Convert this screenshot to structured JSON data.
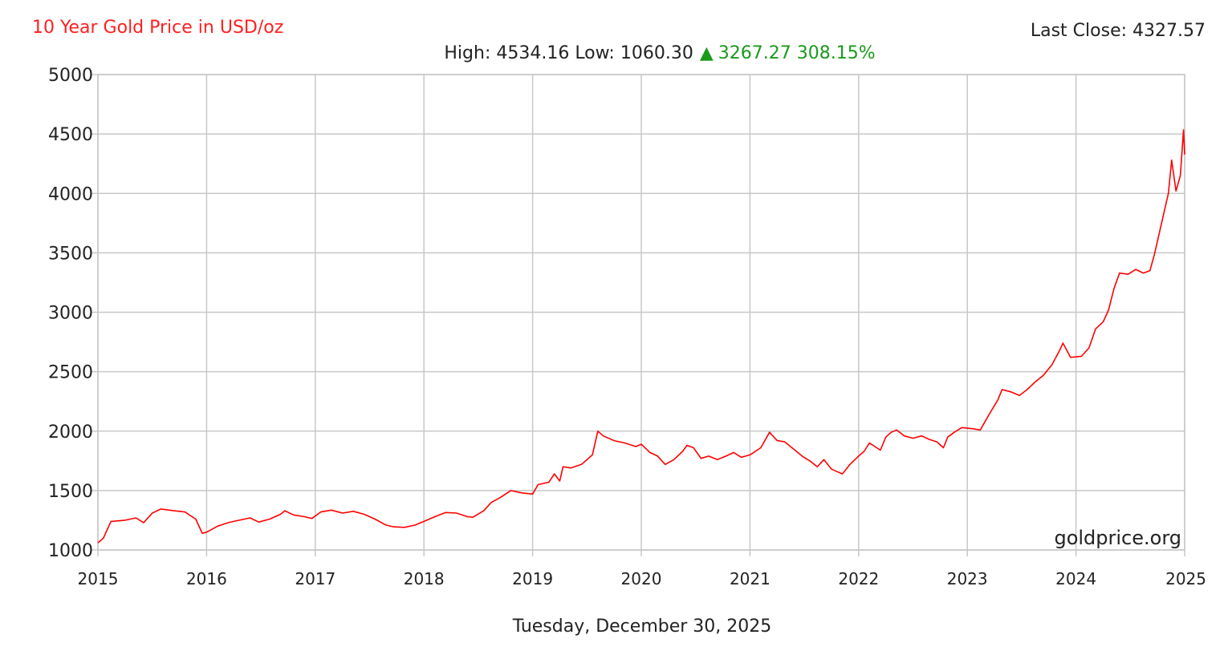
{
  "header": {
    "title": "10 Year Gold Price in USD/oz",
    "last_close_label": "Last Close: 4327.57",
    "high_low_label": "High: 4534.16 Low: 1060.30",
    "change_arrow": "▲",
    "change_value": "3267.27 308.15%"
  },
  "footer": {
    "date": "Tuesday, December 30, 2025",
    "watermark": "goldprice.org"
  },
  "colors": {
    "title": "#ff2020",
    "line": "#ff0000",
    "change": "#1a9a1a",
    "grid": "#c8c8c8",
    "axis": "#888888"
  },
  "chart_data": {
    "type": "line",
    "title": "10 Year Gold Price in USD/oz",
    "xlabel": "",
    "ylabel": "",
    "xlim": [
      2015,
      2025
    ],
    "ylim": [
      1000,
      5000
    ],
    "grid": true,
    "legend": "none",
    "x_ticks": [
      "2015",
      "2016",
      "2017",
      "2018",
      "2019",
      "2020",
      "2021",
      "2022",
      "2023",
      "2024",
      "2025"
    ],
    "y_ticks": [
      "5000",
      "4500",
      "4000",
      "3500",
      "3000",
      "2500",
      "2000",
      "1500",
      "1000"
    ],
    "series": [
      {
        "points": [
          [
            2015.0,
            1060
          ],
          [
            2015.05,
            1100
          ],
          [
            2015.12,
            1240
          ],
          [
            2015.25,
            1250
          ],
          [
            2015.35,
            1270
          ],
          [
            2015.42,
            1230
          ],
          [
            2015.5,
            1310
          ],
          [
            2015.58,
            1345
          ],
          [
            2015.7,
            1330
          ],
          [
            2015.8,
            1320
          ],
          [
            2015.9,
            1260
          ],
          [
            2015.96,
            1140
          ],
          [
            2016.0,
            1150
          ],
          [
            2016.1,
            1200
          ],
          [
            2016.2,
            1230
          ],
          [
            2016.3,
            1250
          ],
          [
            2016.4,
            1270
          ],
          [
            2016.48,
            1235
          ],
          [
            2016.58,
            1260
          ],
          [
            2016.68,
            1300
          ],
          [
            2016.72,
            1330
          ],
          [
            2016.8,
            1295
          ],
          [
            2016.9,
            1280
          ],
          [
            2016.97,
            1265
          ],
          [
            2017.05,
            1320
          ],
          [
            2017.15,
            1335
          ],
          [
            2017.25,
            1310
          ],
          [
            2017.35,
            1325
          ],
          [
            2017.45,
            1300
          ],
          [
            2017.55,
            1260
          ],
          [
            2017.65,
            1210
          ],
          [
            2017.72,
            1195
          ],
          [
            2017.82,
            1190
          ],
          [
            2017.92,
            1210
          ],
          [
            2018.0,
            1240
          ],
          [
            2018.1,
            1280
          ],
          [
            2018.2,
            1315
          ],
          [
            2018.3,
            1310
          ],
          [
            2018.4,
            1280
          ],
          [
            2018.45,
            1275
          ],
          [
            2018.55,
            1330
          ],
          [
            2018.62,
            1400
          ],
          [
            2018.7,
            1440
          ],
          [
            2018.8,
            1500
          ],
          [
            2018.9,
            1480
          ],
          [
            2019.0,
            1470
          ],
          [
            2019.05,
            1550
          ],
          [
            2019.15,
            1570
          ],
          [
            2019.2,
            1640
          ],
          [
            2019.25,
            1580
          ],
          [
            2019.28,
            1700
          ],
          [
            2019.35,
            1690
          ],
          [
            2019.45,
            1720
          ],
          [
            2019.55,
            1800
          ],
          [
            2019.6,
            2000
          ],
          [
            2019.65,
            1960
          ],
          [
            2019.75,
            1920
          ],
          [
            2019.85,
            1900
          ],
          [
            2019.95,
            1870
          ],
          [
            2020.0,
            1890
          ],
          [
            2020.08,
            1820
          ],
          [
            2020.15,
            1790
          ],
          [
            2020.22,
            1720
          ],
          [
            2020.3,
            1760
          ],
          [
            2020.38,
            1830
          ],
          [
            2020.42,
            1880
          ],
          [
            2020.48,
            1860
          ],
          [
            2020.55,
            1770
          ],
          [
            2020.62,
            1790
          ],
          [
            2020.7,
            1760
          ],
          [
            2020.78,
            1790
          ],
          [
            2020.85,
            1820
          ],
          [
            2020.92,
            1780
          ],
          [
            2021.0,
            1800
          ],
          [
            2021.1,
            1860
          ],
          [
            2021.18,
            1990
          ],
          [
            2021.25,
            1920
          ],
          [
            2021.32,
            1910
          ],
          [
            2021.4,
            1850
          ],
          [
            2021.48,
            1790
          ],
          [
            2021.55,
            1750
          ],
          [
            2021.62,
            1700
          ],
          [
            2021.68,
            1760
          ],
          [
            2021.75,
            1680
          ],
          [
            2021.8,
            1660
          ],
          [
            2021.85,
            1640
          ],
          [
            2021.92,
            1720
          ],
          [
            2022.0,
            1790
          ],
          [
            2022.05,
            1830
          ],
          [
            2022.1,
            1900
          ],
          [
            2022.15,
            1870
          ],
          [
            2022.2,
            1840
          ],
          [
            2022.25,
            1950
          ],
          [
            2022.3,
            1990
          ],
          [
            2022.35,
            2010
          ],
          [
            2022.42,
            1960
          ],
          [
            2022.5,
            1940
          ],
          [
            2022.58,
            1960
          ],
          [
            2022.65,
            1930
          ],
          [
            2022.72,
            1910
          ],
          [
            2022.78,
            1860
          ],
          [
            2022.82,
            1950
          ],
          [
            2022.88,
            1990
          ],
          [
            2022.95,
            2030
          ],
          [
            2023.05,
            2020
          ],
          [
            2023.12,
            2010
          ],
          [
            2023.2,
            2140
          ],
          [
            2023.28,
            2260
          ],
          [
            2023.32,
            2350
          ],
          [
            2023.4,
            2330
          ],
          [
            2023.48,
            2300
          ],
          [
            2023.55,
            2350
          ],
          [
            2023.62,
            2410
          ],
          [
            2023.7,
            2470
          ],
          [
            2023.78,
            2560
          ],
          [
            2023.85,
            2680
          ],
          [
            2023.88,
            2740
          ],
          [
            2023.95,
            2620
          ],
          [
            2024.05,
            2630
          ],
          [
            2024.12,
            2700
          ],
          [
            2024.18,
            2860
          ],
          [
            2024.25,
            2920
          ],
          [
            2024.3,
            3020
          ],
          [
            2024.35,
            3200
          ],
          [
            2024.4,
            3330
          ],
          [
            2024.48,
            3320
          ],
          [
            2024.55,
            3360
          ],
          [
            2024.62,
            3330
          ],
          [
            2024.68,
            3350
          ],
          [
            2024.72,
            3480
          ],
          [
            2024.78,
            3720
          ],
          [
            2024.85,
            4000
          ],
          [
            2024.88,
            4280
          ],
          [
            2024.92,
            4020
          ],
          [
            2024.96,
            4150
          ],
          [
            2024.99,
            4534
          ],
          [
            2025.0,
            4327
          ]
        ]
      }
    ]
  }
}
